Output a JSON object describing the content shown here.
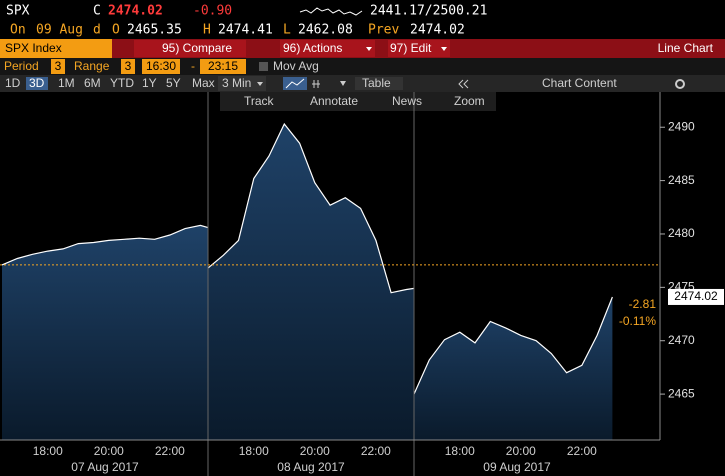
{
  "header": {
    "ticker": "SPX",
    "close_flag": "C",
    "price": "2474.02",
    "change": "-0.90",
    "range": "2441.17/2500.21",
    "on_label": "On",
    "date": "09 Aug",
    "period_flag": "d",
    "open_label": "O",
    "open": "2465.35",
    "high_label": "H",
    "high": "2474.41",
    "low_label": "L",
    "low": "2462.08",
    "prev_label": "Prev",
    "prev": "2474.02"
  },
  "menu": {
    "security": "SPX Index",
    "compare": "95) Compare",
    "actions": "96) Actions",
    "edit": "97) Edit",
    "chart_kind": "Line Chart"
  },
  "settings": {
    "period_label": "Period",
    "period": "3",
    "range_label": "Range",
    "range": "3",
    "start": "16:30",
    "dash": "-",
    "end": "23:15",
    "mov_avg": "Mov Avg"
  },
  "timeframes": {
    "items": [
      "1D",
      "3D",
      "1M",
      "6M",
      "YTD",
      "1Y",
      "5Y",
      "Max"
    ],
    "interval": "3 Min",
    "table": "Table",
    "chart_content": "Chart Content"
  },
  "tools": [
    "Track",
    "Annotate",
    "News",
    "Zoom"
  ],
  "chart_data": {
    "type": "line",
    "color": "#ffffff",
    "xlim": [
      "16:30",
      "23:15"
    ],
    "sessions": [
      {
        "date": "07 Aug 2017",
        "xticks": [
          "18:00",
          "20:00",
          "22:00"
        ],
        "x": [
          "16:30",
          "17:00",
          "17:30",
          "18:00",
          "18:30",
          "19:00",
          "19:30",
          "20:00",
          "20:30",
          "21:00",
          "21:30",
          "22:00",
          "22:30",
          "23:00",
          "23:15"
        ],
        "values": [
          2477.1,
          2477.7,
          2478.1,
          2478.4,
          2478.6,
          2479.1,
          2479.2,
          2479.4,
          2479.5,
          2479.6,
          2479.5,
          2479.9,
          2480.5,
          2480.8,
          2480.6
        ]
      },
      {
        "date": "08 Aug 2017",
        "xticks": [
          "18:00",
          "20:00",
          "22:00"
        ],
        "x": [
          "16:30",
          "17:00",
          "17:30",
          "18:00",
          "18:30",
          "19:00",
          "19:30",
          "20:00",
          "20:30",
          "21:00",
          "21:30",
          "22:00",
          "22:30",
          "23:00",
          "23:15"
        ],
        "values": [
          2476.8,
          2478.0,
          2479.4,
          2485.2,
          2487.3,
          2490.3,
          2488.5,
          2484.8,
          2482.7,
          2483.4,
          2482.4,
          2479.4,
          2474.5,
          2474.8,
          2474.9
        ]
      },
      {
        "date": "09 Aug 2017",
        "xticks": [
          "18:00",
          "20:00",
          "22:00"
        ],
        "x": [
          "16:30",
          "17:00",
          "17:30",
          "18:00",
          "18:30",
          "19:00",
          "19:30",
          "20:00",
          "20:30",
          "21:00",
          "21:30",
          "22:00",
          "22:30",
          "23:00"
        ],
        "values": [
          2465.0,
          2468.2,
          2470.1,
          2470.8,
          2469.8,
          2471.8,
          2471.2,
          2470.5,
          2470.0,
          2468.8,
          2467.0,
          2467.7,
          2470.5,
          2474.1
        ]
      }
    ],
    "ylim": [
      2460.7,
      2493.3
    ],
    "yticks": [
      2465,
      2470,
      2475,
      2480,
      2485,
      2490
    ],
    "reference_line": 2477.1,
    "reference_color": "#f5a623",
    "last_label": "2474.02",
    "last_change": "-2.81",
    "last_change_pct": "-0.11%"
  }
}
